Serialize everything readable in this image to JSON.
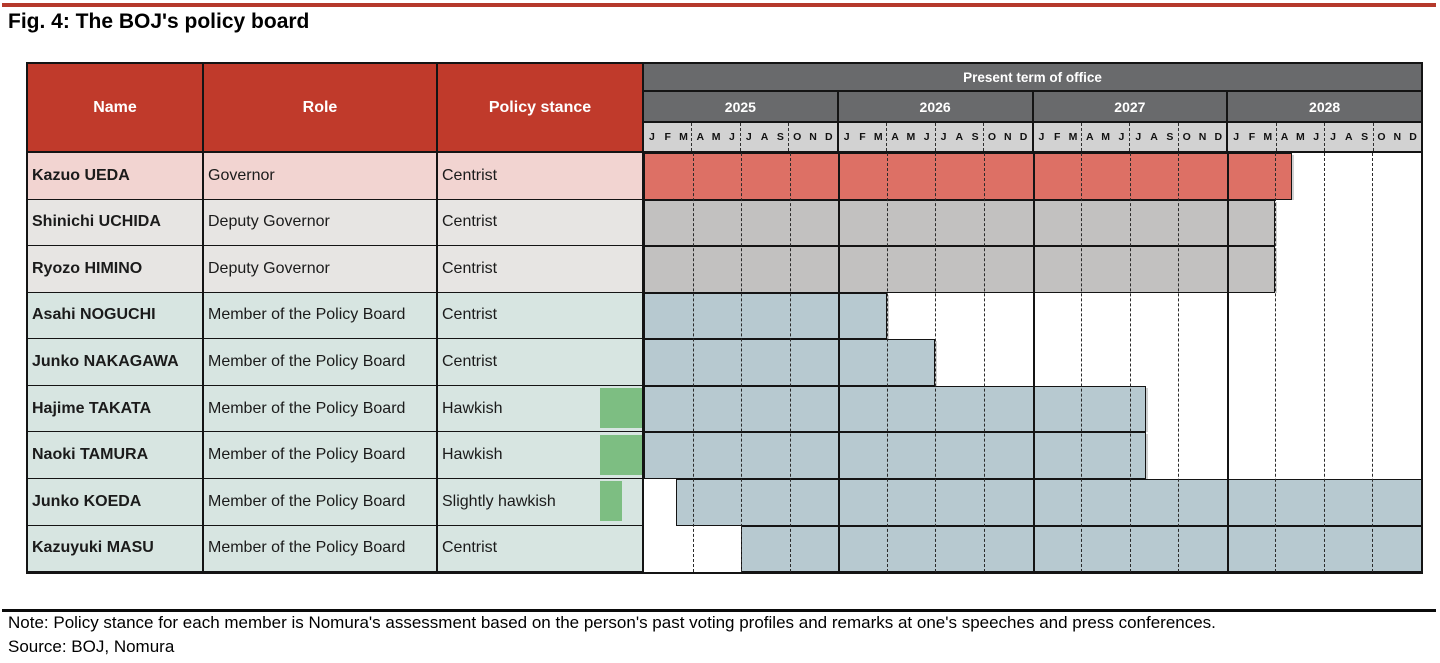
{
  "figure": {
    "title": "Fig. 4: The BOJ's policy board",
    "note": "Note: Policy stance for each member is Nomura's assessment based on the person's past voting profiles and remarks at one's speeches and press conferences.",
    "source": "Source: BOJ, Nomura"
  },
  "table": {
    "columns": {
      "name": "Name",
      "role": "Role",
      "stance": "Policy stance"
    },
    "timeline_header": "Present term of office",
    "years": [
      "2025",
      "2026",
      "2027",
      "2028"
    ],
    "month_labels": [
      "J",
      "F",
      "M",
      "A",
      "M",
      "J",
      "J",
      "A",
      "S",
      "O",
      "N",
      "D"
    ],
    "months_total": 48,
    "colors": {
      "rule_red": "#b5392b",
      "rule_black": "#0b0b0b",
      "header_red": "#c03a2b",
      "header_dark": "#696a6c",
      "month_bg": "#d2d2d2",
      "border": "#141414",
      "row_pink": "#f2d4d1",
      "row_gray": "#e7e5e3",
      "row_teal": "#d7e5e1",
      "bar_red": "#dd7065",
      "bar_gray": "#c2c1c0",
      "bar_blue": "#b7c9d0",
      "marker_green": "#7dbe82"
    },
    "rows": [
      {
        "name": "Kazuo UEDA",
        "role": "Governor",
        "stance": "Centrist",
        "row_bg": "row_pink",
        "bar_color": "bar_red",
        "bar_start_month": 0,
        "bar_end_month": 40,
        "stance_marker_width": 0
      },
      {
        "name": "Shinichi UCHIDA",
        "role": "Deputy Governor",
        "stance": "Centrist",
        "row_bg": "row_gray",
        "bar_color": "bar_gray",
        "bar_start_month": 0,
        "bar_end_month": 39,
        "stance_marker_width": 0
      },
      {
        "name": "Ryozo HIMINO",
        "role": "Deputy Governor",
        "stance": "Centrist",
        "row_bg": "row_gray",
        "bar_color": "bar_gray",
        "bar_start_month": 0,
        "bar_end_month": 39,
        "stance_marker_width": 0
      },
      {
        "name": "Asahi NOGUCHI",
        "role": "Member of the Policy Board",
        "stance": "Centrist",
        "row_bg": "row_teal",
        "bar_color": "bar_blue",
        "bar_start_month": 0,
        "bar_end_month": 15,
        "stance_marker_width": 0
      },
      {
        "name": "Junko NAKAGAWA",
        "role": "Member of the Policy Board",
        "stance": "Centrist",
        "row_bg": "row_teal",
        "bar_color": "bar_blue",
        "bar_start_month": 0,
        "bar_end_month": 18,
        "stance_marker_width": 0
      },
      {
        "name": "Hajime TAKATA",
        "role": "Member of the Policy Board",
        "stance": "Hawkish",
        "row_bg": "row_teal",
        "bar_color": "bar_blue",
        "bar_start_month": 0,
        "bar_end_month": 31,
        "stance_marker_width": 43
      },
      {
        "name": "Naoki TAMURA",
        "role": "Member of the Policy Board",
        "stance": "Hawkish",
        "row_bg": "row_teal",
        "bar_color": "bar_blue",
        "bar_start_month": 0,
        "bar_end_month": 31,
        "stance_marker_width": 43
      },
      {
        "name": "Junko KOEDA",
        "role": "Member of the Policy Board",
        "stance": "Slightly hawkish",
        "row_bg": "row_teal",
        "bar_color": "bar_blue",
        "bar_start_month": 2,
        "bar_end_month": 48,
        "stance_marker_width": 22
      },
      {
        "name": "Kazuyuki MASU",
        "role": "Member of the Policy Board",
        "stance": "Centrist",
        "row_bg": "row_teal",
        "bar_color": "bar_blue",
        "bar_start_month": 6,
        "bar_end_month": 48,
        "stance_marker_width": 0
      }
    ]
  },
  "chart_data": {
    "type": "table",
    "subtype": "gantt",
    "title": "Fig. 4: The BOJ's policy board",
    "timeline": {
      "header": "Present term of office",
      "start": "2025-01",
      "end": "2028-12",
      "year_ticks": [
        "2025",
        "2026",
        "2027",
        "2028"
      ],
      "month_tick_letters": [
        "J",
        "F",
        "M",
        "A",
        "M",
        "J",
        "J",
        "A",
        "S",
        "O",
        "N",
        "D"
      ],
      "quarter_gridlines": "dashed",
      "year_gridlines": "solid"
    },
    "rows": [
      {
        "name": "Kazuo UEDA",
        "role": "Governor",
        "policy_stance": "Centrist",
        "bar_shown_from": "2025-01",
        "bar_shown_to": "2028-04",
        "hawkishness_marker": 0
      },
      {
        "name": "Shinichi UCHIDA",
        "role": "Deputy Governor",
        "policy_stance": "Centrist",
        "bar_shown_from": "2025-01",
        "bar_shown_to": "2028-03",
        "hawkishness_marker": 0
      },
      {
        "name": "Ryozo HIMINO",
        "role": "Deputy Governor",
        "policy_stance": "Centrist",
        "bar_shown_from": "2025-01",
        "bar_shown_to": "2028-03",
        "hawkishness_marker": 0
      },
      {
        "name": "Asahi NOGUCHI",
        "role": "Member of the Policy Board",
        "policy_stance": "Centrist",
        "bar_shown_from": "2025-01",
        "bar_shown_to": "2026-03",
        "hawkishness_marker": 0
      },
      {
        "name": "Junko NAKAGAWA",
        "role": "Member of the Policy Board",
        "policy_stance": "Centrist",
        "bar_shown_from": "2025-01",
        "bar_shown_to": "2026-06",
        "hawkishness_marker": 0
      },
      {
        "name": "Hajime TAKATA",
        "role": "Member of the Policy Board",
        "policy_stance": "Hawkish",
        "bar_shown_from": "2025-01",
        "bar_shown_to": "2027-07",
        "hawkishness_marker": 2
      },
      {
        "name": "Naoki TAMURA",
        "role": "Member of the Policy Board",
        "policy_stance": "Hawkish",
        "bar_shown_from": "2025-01",
        "bar_shown_to": "2027-07",
        "hawkishness_marker": 2
      },
      {
        "name": "Junko KOEDA",
        "role": "Member of the Policy Board",
        "policy_stance": "Slightly hawkish",
        "bar_shown_from": "2025-03",
        "bar_shown_to": "beyond 2028-12",
        "hawkishness_marker": 1
      },
      {
        "name": "Kazuyuki MASU",
        "role": "Member of the Policy Board",
        "policy_stance": "Centrist",
        "bar_shown_from": "2025-07",
        "bar_shown_to": "beyond 2028-12",
        "hawkishness_marker": 0
      }
    ],
    "note": "Note: Policy stance for each member is Nomura's assessment based on the person's past voting profiles and remarks at one's speeches and press conferences.",
    "source": "Source: BOJ, Nomura"
  }
}
